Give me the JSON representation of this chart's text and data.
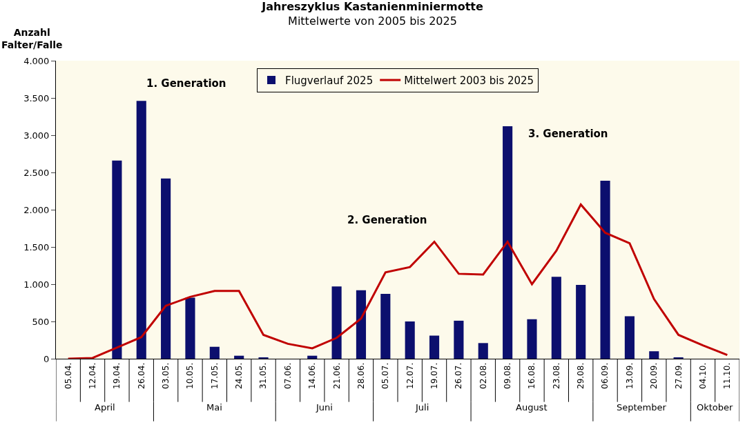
{
  "chart_data": {
    "type": "bar",
    "title": "Jahreszyklus Kastanienminiermotte",
    "subtitle": "Mittelwerte von 2005 bis 2025",
    "ylabel": "Anzahl\nFalter/Falle",
    "categories": [
      "05.04.",
      "12.04.",
      "19.04.",
      "26.04.",
      "03.05.",
      "10.05.",
      "17.05.",
      "24.05.",
      "31.05.",
      "07.06.",
      "14.06.",
      "21.06.",
      "28.06.",
      "05.07.",
      "12.07.",
      "19.07.",
      "26.07.",
      "02.08.",
      "09.08.",
      "16.08.",
      "23.08.",
      "29.08.",
      "06.09.",
      "13.09.",
      "20.09.",
      "27.09.",
      "04.10.",
      "11.10."
    ],
    "series": [
      {
        "name": "Flugverlauf 2025",
        "color": "#0c0f6e",
        "values": [
          0,
          0,
          2660,
          3460,
          2420,
          820,
          160,
          40,
          10,
          0,
          40,
          970,
          920,
          870,
          500,
          310,
          510,
          210,
          3120,
          530,
          1100,
          990,
          2390,
          570,
          100,
          10,
          0,
          0
        ]
      },
      {
        "name": "Mittelwert 2003 bis 2025",
        "type": "line",
        "color": "#c00000",
        "values": [
          0,
          10,
          150,
          290,
          710,
          830,
          910,
          910,
          320,
          200,
          140,
          280,
          540,
          1160,
          1230,
          1570,
          1140,
          1130,
          1570,
          1000,
          1450,
          2070,
          1690,
          1550,
          800,
          320,
          180,
          50
        ]
      }
    ],
    "ylim": [
      0,
      4000
    ],
    "yticks": [
      0,
      {
        "value": 500,
        "label": "500"
      },
      {
        "value": 1000,
        "label": "1.000"
      },
      {
        "value": 1500,
        "label": "1.500"
      },
      {
        "value": 2000,
        "label": "2.000"
      },
      {
        "value": 2500,
        "label": "2.500"
      },
      {
        "value": 3000,
        "label": "3.000"
      },
      {
        "value": 3500,
        "label": "3.500"
      },
      {
        "value": 4000,
        "label": "4.000"
      }
    ],
    "annotations": [
      "1. Generation",
      "2. Generation",
      "3. Generation",
      "April",
      "Mai",
      "Juni",
      "Juli",
      "August",
      "September",
      "Oktober"
    ],
    "legend": "top",
    "grid": false,
    "marker": "none",
    "line_style": "solid"
  }
}
